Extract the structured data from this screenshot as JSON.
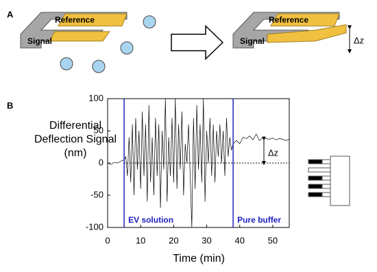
{
  "panel_a": {
    "label": "A",
    "reference": "Reference",
    "signal": "Signal",
    "reference_right": "Reference",
    "signal_right": "Signal",
    "delta": "Δz"
  },
  "chart_data": {
    "type": "line",
    "panel_label": "B",
    "x_label": "Time (min)",
    "y_label": [
      "Differential",
      "Deflection Signal",
      "(nm)"
    ],
    "xlim": [
      0,
      55
    ],
    "xticks": [
      0,
      10,
      20,
      30,
      40,
      50
    ],
    "ylim": [
      -100,
      100
    ],
    "yticks": [
      -100,
      -50,
      0,
      50,
      100
    ],
    "annotations": {
      "ev": "EV solution",
      "buffer": "Pure buffer",
      "delta": "Δz",
      "ev_start": 5,
      "buffer_start": 38,
      "delta_top": 38
    },
    "x": [
      0,
      1,
      2,
      3,
      4,
      5,
      5.5,
      6,
      6.5,
      7,
      7.5,
      8,
      8.5,
      9,
      9.5,
      10,
      10.5,
      11,
      11.5,
      12,
      12.5,
      13,
      13.5,
      14,
      14.5,
      15,
      15.5,
      16,
      16.5,
      17,
      17.5,
      18,
      18.5,
      19,
      19.5,
      20,
      20.5,
      21,
      21.5,
      22,
      22.5,
      23,
      23.5,
      24,
      24.5,
      25,
      25.5,
      26,
      26.5,
      27,
      27.5,
      28,
      28.5,
      29,
      29.5,
      30,
      30.5,
      31,
      31.5,
      32,
      32.5,
      33,
      33.5,
      34,
      34.5,
      35,
      35.5,
      36,
      36.5,
      37,
      37.5,
      38,
      39,
      40,
      41,
      42,
      43,
      44,
      45,
      46,
      47,
      48,
      49,
      50,
      51,
      52,
      53,
      54,
      55
    ],
    "series": [
      {
        "color": "#000000",
        "values": [
          0,
          -2,
          1,
          0,
          3,
          5,
          10,
          -20,
          40,
          -30,
          60,
          -50,
          70,
          -10,
          50,
          -40,
          80,
          -20,
          60,
          -60,
          90,
          -30,
          40,
          -50,
          70,
          -20,
          60,
          -70,
          50,
          -10,
          100,
          -60,
          40,
          -20,
          70,
          -30,
          100,
          -40,
          60,
          -10,
          80,
          -50,
          30,
          0,
          60,
          -20,
          -100,
          70,
          -40,
          90,
          -10,
          60,
          -30,
          100,
          -60,
          50,
          0,
          70,
          -20,
          60,
          -30,
          50,
          10,
          60,
          0,
          50,
          -20,
          70,
          10,
          40,
          20,
          30,
          35,
          30,
          40,
          38,
          42,
          36,
          45,
          35,
          40,
          38,
          37,
          39,
          36,
          38,
          37,
          35,
          37
        ]
      }
    ]
  }
}
